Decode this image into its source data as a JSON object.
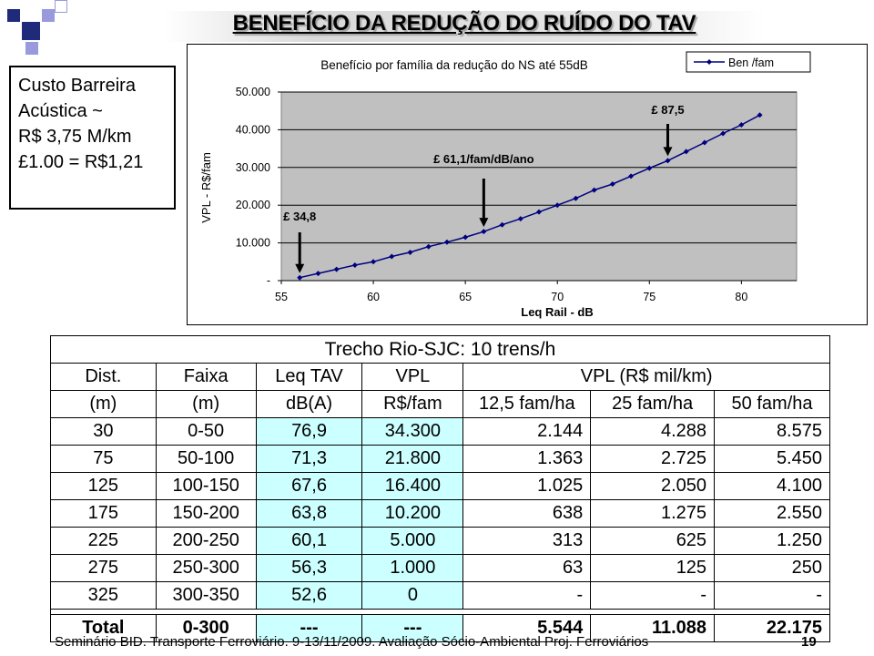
{
  "slide": {
    "title": "BENEFÍCIO DA REDUÇÃO DO RUÍDO DO TAV",
    "info_box": [
      "Custo Barreira",
      "Acústica ~",
      "R$ 3,75 M/km",
      "",
      "£1.00 = R$1,21"
    ],
    "footer": "Seminário BID. Transporte Ferroviário. 9-13/11/2009. Avaliação Sócio-Ambiental Proj. Ferroviários",
    "page_number": "19"
  },
  "chart_data": {
    "type": "line",
    "title": "Benefício por família da redução do NS até 55dB",
    "xlabel": "Leq Rail - dB",
    "ylabel": "VPL - R$/fam",
    "xlim": [
      55,
      83
    ],
    "ylim": [
      0,
      50000
    ],
    "x_ticks": [
      "55",
      "60",
      "65",
      "70",
      "75",
      "80"
    ],
    "x_tick_values": [
      55,
      60,
      65,
      70,
      75,
      80
    ],
    "y_ticks": [
      "-",
      "10.000",
      "20.000",
      "30.000",
      "40.000",
      "50.000"
    ],
    "y_tick_values": [
      0,
      10000,
      20000,
      30000,
      40000,
      50000
    ],
    "legend_position": "top-right",
    "series": [
      {
        "name": "Ben /fam",
        "color": "#000080",
        "x": [
          56,
          57,
          58,
          59,
          60,
          61,
          62,
          63,
          64,
          65,
          66,
          67,
          68,
          69,
          70,
          71,
          72,
          73,
          74,
          75,
          76,
          77,
          78,
          79,
          80,
          81
        ],
        "y": [
          800,
          1900,
          3000,
          4100,
          5000,
          6400,
          7500,
          9000,
          10200,
          11500,
          13000,
          14800,
          16400,
          18200,
          20000,
          21800,
          24000,
          25600,
          27700,
          29800,
          31800,
          34200,
          36600,
          39000,
          41300,
          43900
        ]
      }
    ],
    "annotations": [
      {
        "label": "£ 34,8",
        "x": 56,
        "y": 800
      },
      {
        "label": "£ 61,1/fam/dB/ano",
        "x": 66,
        "y": 13000
      },
      {
        "label": "£ 87,5",
        "x": 76,
        "y": 31800
      }
    ]
  },
  "table": {
    "caption": "Trecho Rio-SJC: 10 trens/h",
    "header_row1": [
      "Dist.",
      "Faixa",
      "Leq TAV",
      "VPL",
      "VPL (R$ mil/km)"
    ],
    "header_row2": [
      "(m)",
      "(m)",
      "dB(A)",
      "R$/fam",
      "12,5 fam/ha",
      "25 fam/ha",
      "50 fam/ha"
    ],
    "rows": [
      [
        "30",
        "0-50",
        "76,9",
        "34.300",
        "2.144",
        "4.288",
        "8.575"
      ],
      [
        "75",
        "50-100",
        "71,3",
        "21.800",
        "1.363",
        "2.725",
        "5.450"
      ],
      [
        "125",
        "100-150",
        "67,6",
        "16.400",
        "1.025",
        "2.050",
        "4.100"
      ],
      [
        "175",
        "150-200",
        "63,8",
        "10.200",
        "638",
        "1.275",
        "2.550"
      ],
      [
        "225",
        "200-250",
        "60,1",
        "5.000",
        "313",
        "625",
        "1.250"
      ],
      [
        "275",
        "250-300",
        "56,3",
        "1.000",
        "63",
        "125",
        "250"
      ],
      [
        "325",
        "300-350",
        "52,6",
        "0",
        "-",
        "-",
        "-"
      ]
    ],
    "total": [
      "Total",
      "0-300",
      "---",
      "---",
      "5.544",
      "11.088",
      "22.175"
    ]
  }
}
